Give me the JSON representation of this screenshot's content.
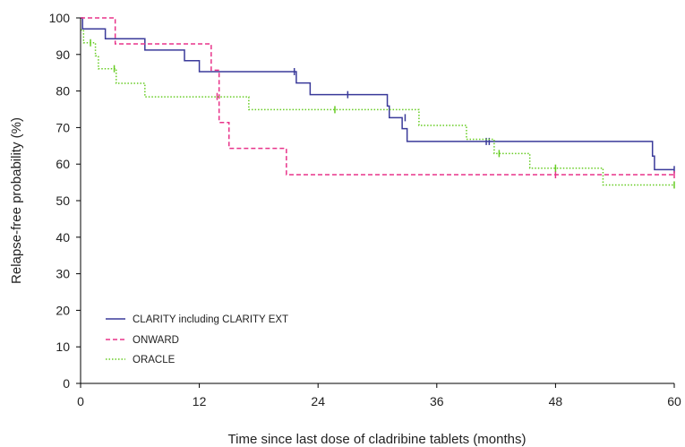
{
  "chart_data": {
    "type": "line",
    "title": "",
    "xlabel": "Time since last dose of cladribine tablets (months)",
    "ylabel": "Relapse-free probability (%)",
    "xlim": [
      0,
      60
    ],
    "ylim": [
      0,
      100
    ],
    "xticks": [
      0,
      12,
      24,
      36,
      48,
      60
    ],
    "yticks": [
      0,
      10,
      20,
      30,
      40,
      50,
      60,
      70,
      80,
      90,
      100
    ],
    "grid": false,
    "legend_position": "bottom-left",
    "series": [
      {
        "name": "CLARITY including CLARITY EXT",
        "color": "#3a3a9a",
        "style": "solid",
        "steps": [
          [
            0,
            100
          ],
          [
            0.2,
            97
          ],
          [
            2.5,
            94.3
          ],
          [
            6.5,
            91.2
          ],
          [
            10.5,
            88.3
          ],
          [
            12,
            85.3
          ],
          [
            21.8,
            82.2
          ],
          [
            23.2,
            79
          ],
          [
            31,
            75.9
          ],
          [
            31.2,
            72.7
          ],
          [
            32.5,
            69.7
          ],
          [
            33,
            66.2
          ],
          [
            57.8,
            62.2
          ],
          [
            58,
            58.5
          ],
          [
            60,
            58.5
          ]
        ],
        "censors": [
          [
            21.6,
            85.3
          ],
          [
            27,
            79
          ],
          [
            32.8,
            72.7
          ],
          [
            41,
            66.2
          ],
          [
            41.3,
            66.2
          ],
          [
            60,
            58.5
          ]
        ]
      },
      {
        "name": "ONWARD",
        "color": "#e8338a",
        "style": "dashed",
        "steps": [
          [
            0,
            100
          ],
          [
            3.5,
            92.9
          ],
          [
            13.2,
            85.7
          ],
          [
            14,
            78.6
          ],
          [
            14,
            71.4
          ],
          [
            15,
            64.3
          ],
          [
            20.8,
            57.1
          ],
          [
            60,
            57.1
          ]
        ],
        "censors": [
          [
            13.8,
            78.5
          ],
          [
            48,
            57.1
          ],
          [
            60,
            57.1
          ]
        ]
      },
      {
        "name": "ORACLE",
        "color": "#66cc22",
        "style": "dotted",
        "steps": [
          [
            0,
            96.7
          ],
          [
            0.3,
            93.2
          ],
          [
            1.5,
            89.6
          ],
          [
            1.8,
            86.1
          ],
          [
            3.6,
            82.1
          ],
          [
            6.5,
            78.4
          ],
          [
            17,
            74.9
          ],
          [
            34.2,
            70.6
          ],
          [
            39,
            66.8
          ],
          [
            41.8,
            62.9
          ],
          [
            45.4,
            58.9
          ],
          [
            52.8,
            54.3
          ],
          [
            60,
            54.3
          ]
        ],
        "censors": [
          [
            1,
            93.2
          ],
          [
            3.4,
            86.1
          ],
          [
            25.7,
            74.9
          ],
          [
            42.3,
            62.9
          ],
          [
            48,
            58.9
          ],
          [
            60,
            54.3
          ]
        ]
      }
    ]
  }
}
